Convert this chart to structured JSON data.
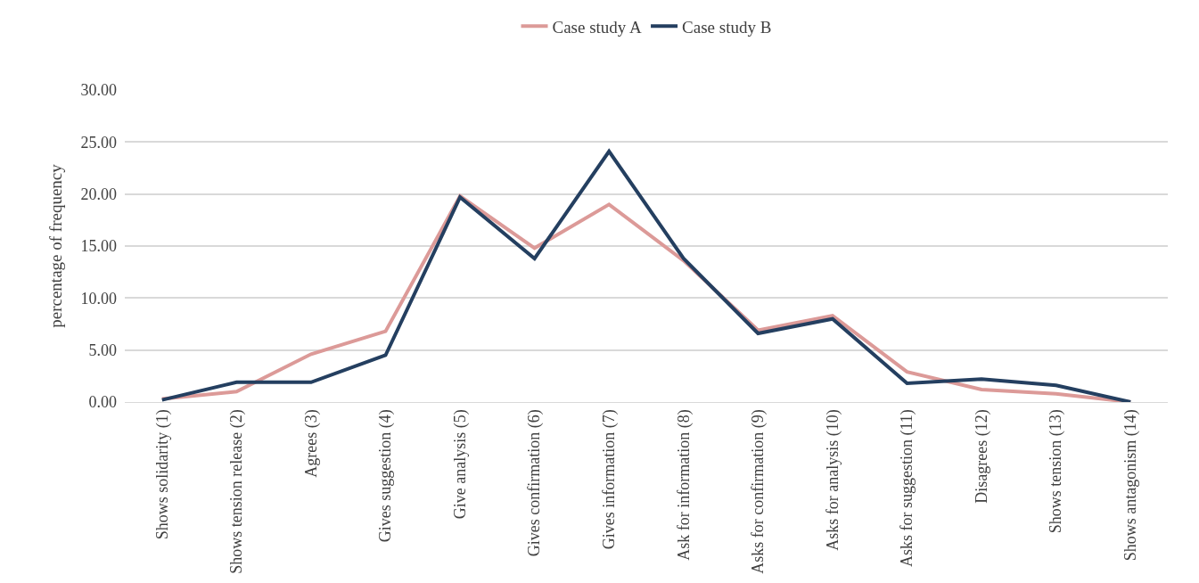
{
  "chart_data": {
    "type": "line",
    "ylabel": "percentage of frequency",
    "categories": [
      "Shows solidarity (1)",
      "Shows tension release (2)",
      "Agrees (3)",
      "Gives suggestion (4)",
      "Give analysis (5)",
      "Gives confirmation (6)",
      "Gives information (7)",
      "Ask for information (8)",
      "Asks for confirmation (9)",
      "Asks for analysis (10)",
      "Asks for suggestion (11)",
      "Disagrees (12)",
      "Shows tension (13)",
      "Shows antagonism (14)"
    ],
    "series": [
      {
        "name": "Case study A",
        "color": "#dc9a98",
        "values": [
          0.3,
          1.0,
          4.6,
          6.8,
          19.8,
          14.8,
          19.0,
          13.6,
          6.9,
          8.3,
          2.9,
          1.2,
          0.8,
          0.0
        ]
      },
      {
        "name": "Case study B",
        "color": "#243f60",
        "values": [
          0.2,
          1.9,
          1.9,
          4.5,
          19.7,
          13.8,
          24.1,
          13.8,
          6.6,
          8.0,
          1.8,
          2.2,
          1.6,
          0.0
        ]
      }
    ],
    "ylim": [
      0,
      30
    ],
    "yticks": [
      {
        "value": 0,
        "label": "0.00"
      },
      {
        "value": 5,
        "label": "5.00"
      },
      {
        "value": 10,
        "label": "10.00"
      },
      {
        "value": 15,
        "label": "15.00"
      },
      {
        "value": 20,
        "label": "20.00"
      },
      {
        "value": 25,
        "label": "25.00"
      },
      {
        "value": 30,
        "label": "30.00"
      }
    ],
    "grid": "y",
    "legend": "top",
    "marker": "none",
    "line_style": "solid"
  }
}
